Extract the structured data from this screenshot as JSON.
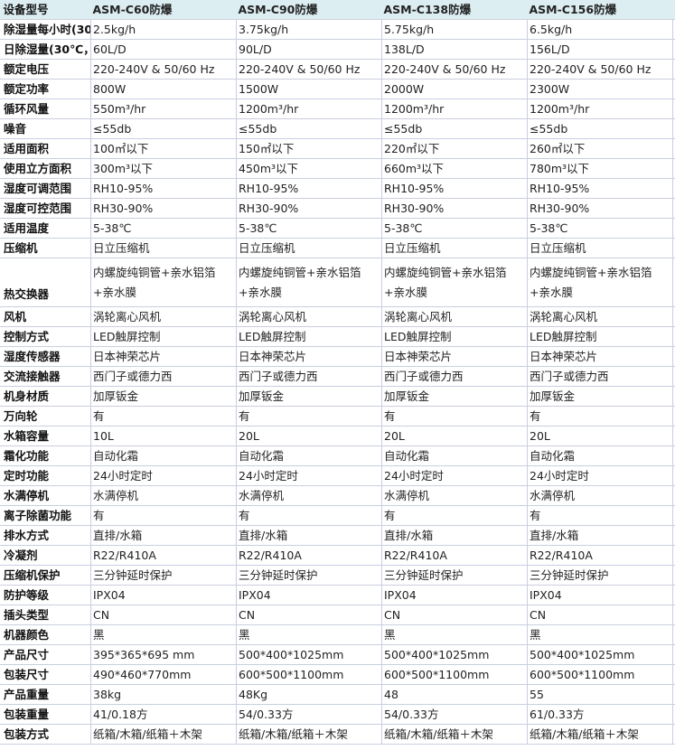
{
  "header": {
    "label": "设备型号",
    "models": [
      "ASM-C60防爆",
      "ASM-C90防爆",
      "ASM-C138防爆",
      "ASM-C156防爆"
    ]
  },
  "rows": [
    {
      "label": "除湿量每小时(30",
      "values": [
        "2.5kg/h",
        "3.75kg/h",
        "5.75kg/h",
        "6.5kg/h"
      ]
    },
    {
      "label": "日除湿量(30℃，",
      "values": [
        "60L/D",
        "90L/D",
        "138L/D",
        "156L/D"
      ]
    },
    {
      "label": "额定电压",
      "values": [
        "220-240V & 50/60 Hz",
        "220-240V & 50/60 Hz",
        "220-240V & 50/60 Hz",
        "220-240V & 50/60 Hz"
      ]
    },
    {
      "label": "额定功率",
      "values": [
        "800W",
        "1500W",
        "2000W",
        "2300W"
      ]
    },
    {
      "label": "循环风量",
      "values": [
        "550m³/hr",
        "1200m³/hr",
        "1200m³/hr",
        "1200m³/hr"
      ]
    },
    {
      "label": "噪音",
      "values": [
        "≤55db",
        "≤55db",
        "≤55db",
        "≤55db"
      ]
    },
    {
      "label": "适用面积",
      "values": [
        "100㎡以下",
        "150㎡以下",
        "220㎡以下",
        "260㎡以下"
      ]
    },
    {
      "label": "使用立方面积",
      "values": [
        "300m³以下",
        "450m³以下",
        "660m³以下",
        "780m³以下"
      ]
    },
    {
      "label": "湿度可调范围",
      "values": [
        "RH10-95%",
        "RH10-95%",
        "RH10-95%",
        "RH10-95%"
      ]
    },
    {
      "label": "湿度可控范围",
      "values": [
        "RH30-90%",
        "RH30-90%",
        "RH30-90%",
        "RH30-90%"
      ]
    },
    {
      "label": "适用温度",
      "values": [
        "5-38℃",
        "5-38℃",
        "5-38℃",
        "5-38℃"
      ]
    },
    {
      "label": "压缩机",
      "values": [
        "日立压缩机",
        "日立压缩机",
        "日立压缩机",
        "日立压缩机"
      ]
    },
    {
      "label": "热交换器",
      "values": [
        "内螺旋纯铜管+亲水铝箔+亲水膜",
        "内螺旋纯铜管+亲水铝箔+亲水膜",
        "内螺旋纯铜管+亲水铝箔+亲水膜",
        "内螺旋纯铜管+亲水铝箔+亲水膜"
      ],
      "tall": true
    },
    {
      "label": "风机",
      "values": [
        "涡轮离心风机",
        "涡轮离心风机",
        "涡轮离心风机",
        "涡轮离心风机"
      ]
    },
    {
      "label": "控制方式",
      "values": [
        "LED触屏控制",
        "LED触屏控制",
        "LED触屏控制",
        "LED触屏控制"
      ]
    },
    {
      "label": "湿度传感器",
      "values": [
        "日本神荣芯片",
        "日本神荣芯片",
        "日本神荣芯片",
        "日本神荣芯片"
      ]
    },
    {
      "label": "交流接触器",
      "values": [
        "西门子或德力西",
        "西门子或德力西",
        "西门子或德力西",
        "西门子或德力西"
      ]
    },
    {
      "label": "机身材质",
      "values": [
        "加厚钣金",
        "加厚钣金",
        "加厚钣金",
        "加厚钣金"
      ]
    },
    {
      "label": "万向轮",
      "values": [
        "有",
        "有",
        "有",
        "有"
      ]
    },
    {
      "label": "水箱容量",
      "values": [
        "10L",
        "20L",
        "20L",
        "20L"
      ]
    },
    {
      "label": "霜化功能",
      "values": [
        "自动化霜",
        "自动化霜",
        "自动化霜",
        "自动化霜"
      ]
    },
    {
      "label": "定时功能",
      "values": [
        "24小时定时",
        "24小时定时",
        "24小时定时",
        "24小时定时"
      ]
    },
    {
      "label": "水满停机",
      "values": [
        "水满停机",
        "水满停机",
        "水满停机",
        "水满停机"
      ]
    },
    {
      "label": "离子除菌功能",
      "values": [
        "有",
        "有",
        "有",
        "有"
      ]
    },
    {
      "label": "排水方式",
      "values": [
        "直排/水箱",
        "直排/水箱",
        "直排/水箱",
        "直排/水箱"
      ]
    },
    {
      "label": "冷凝剂",
      "values": [
        "R22/R410A",
        "R22/R410A",
        "R22/R410A",
        "R22/R410A"
      ]
    },
    {
      "label": "压缩机保护",
      "values": [
        "三分钟延时保护",
        "三分钟延时保护",
        "三分钟延时保护",
        "三分钟延时保护"
      ]
    },
    {
      "label": "防护等级",
      "values": [
        "IPX04",
        "IPX04",
        "IPX04",
        "IPX04"
      ]
    },
    {
      "label": "插头类型",
      "values": [
        "CN",
        "CN",
        "CN",
        "CN"
      ]
    },
    {
      "label": "机器颜色",
      "values": [
        "黑",
        "黑",
        "黑",
        "黑"
      ]
    },
    {
      "label": "产品尺寸",
      "values": [
        "395*365*695 mm",
        "500*400*1025mm",
        "500*400*1025mm",
        "500*400*1025mm"
      ]
    },
    {
      "label": "包装尺寸",
      "values": [
        "490*460*770mm",
        "600*500*1100mm",
        "600*500*1100mm",
        "600*500*1100mm"
      ]
    },
    {
      "label": "产品重量",
      "values": [
        "38kg",
        "48Kg",
        "48",
        "55"
      ]
    },
    {
      "label": "包装重量",
      "values": [
        "41/0.18方",
        "54/0.33方",
        "54/0.33方",
        "61/0.33方"
      ]
    },
    {
      "label": "包装方式",
      "values": [
        "纸箱/木箱/纸箱＋木架",
        "纸箱/木箱/纸箱＋木架",
        "纸箱/木箱/纸箱＋木架",
        "纸箱/木箱/纸箱＋木架"
      ]
    }
  ]
}
